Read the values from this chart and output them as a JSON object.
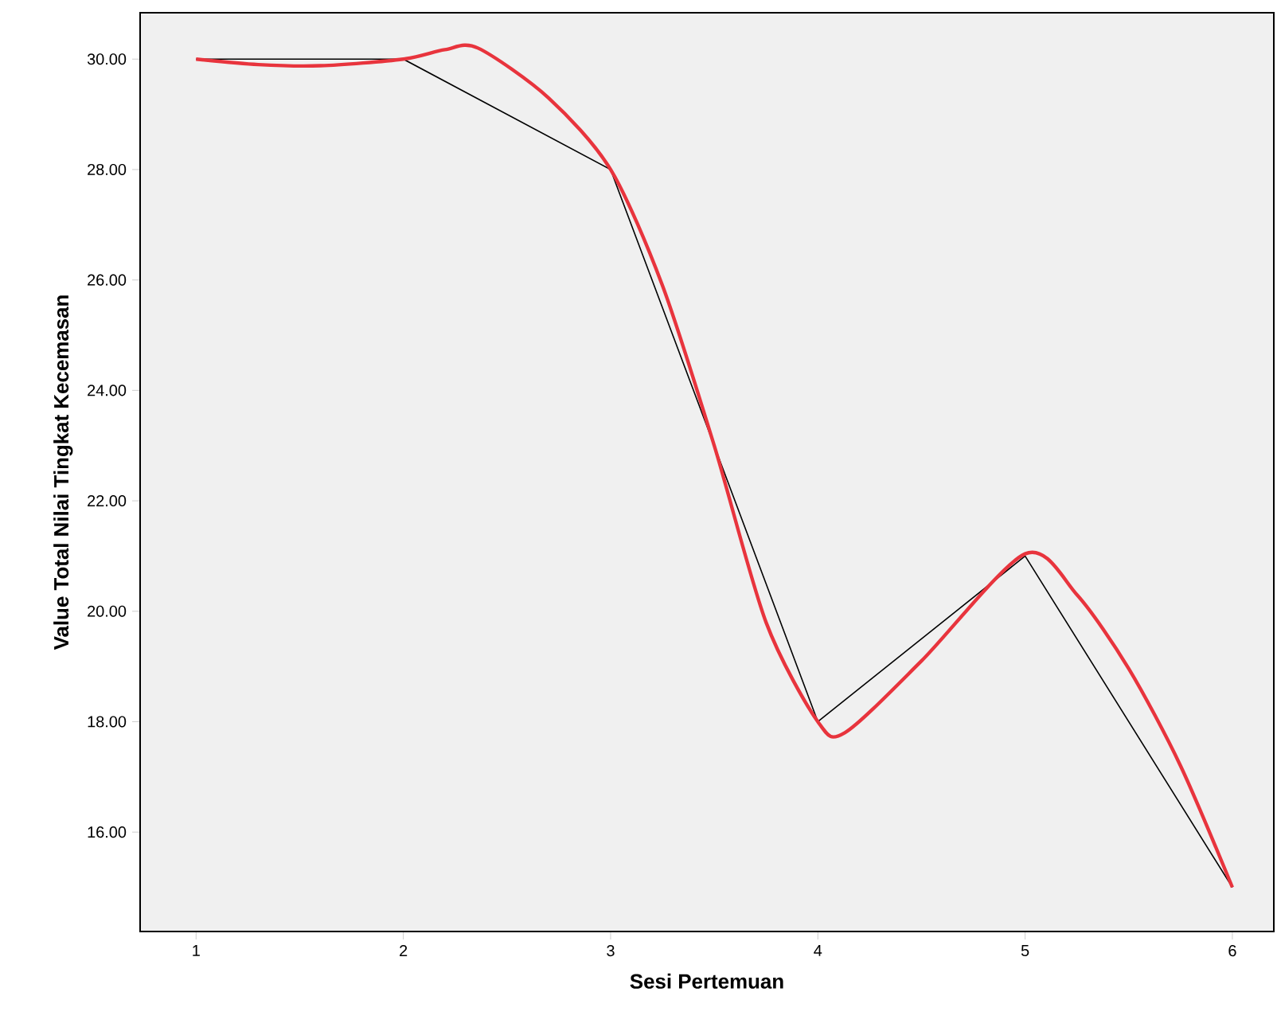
{
  "chart_data": {
    "type": "line",
    "xlabel": "Sesi Pertemuan",
    "ylabel": "Value Total Nilai Tingkat Kecemasan",
    "xlim": [
      0.73,
      6.2
    ],
    "ylim": [
      14.2,
      30.84
    ],
    "xticks": [
      1,
      2,
      3,
      4,
      5,
      6
    ],
    "yticks": [
      {
        "value": 16,
        "label": "16.00"
      },
      {
        "value": 18,
        "label": "18.00"
      },
      {
        "value": 20,
        "label": "20.00"
      },
      {
        "value": 22,
        "label": "22.00"
      },
      {
        "value": 24,
        "label": "24.00"
      },
      {
        "value": 26,
        "label": "26.00"
      },
      {
        "value": 28,
        "label": "28.00"
      },
      {
        "value": 30,
        "label": "30.00"
      }
    ],
    "grid": false,
    "marker": "none",
    "line_style": "solid",
    "series": [
      {
        "color": "#000000",
        "x": [
          1,
          2,
          3,
          4,
          5,
          6
        ],
        "values": [
          30,
          30,
          28,
          18,
          21,
          15
        ]
      },
      {
        "color": "#e8343d",
        "x": [
          1,
          1.3,
          1.6,
          2,
          2.2,
          2.36,
          2.7,
          3,
          3.25,
          3.5,
          3.75,
          4,
          4.13,
          4.5,
          5,
          5.25,
          5.5,
          5.75,
          6
        ],
        "values": [
          30,
          29.9,
          29.88,
          30,
          30.17,
          30.2,
          29.3,
          28,
          25.9,
          23.0,
          19.8,
          18,
          17.8,
          19.1,
          21.04,
          20.3,
          18.96,
          17.2,
          15
        ]
      }
    ]
  }
}
